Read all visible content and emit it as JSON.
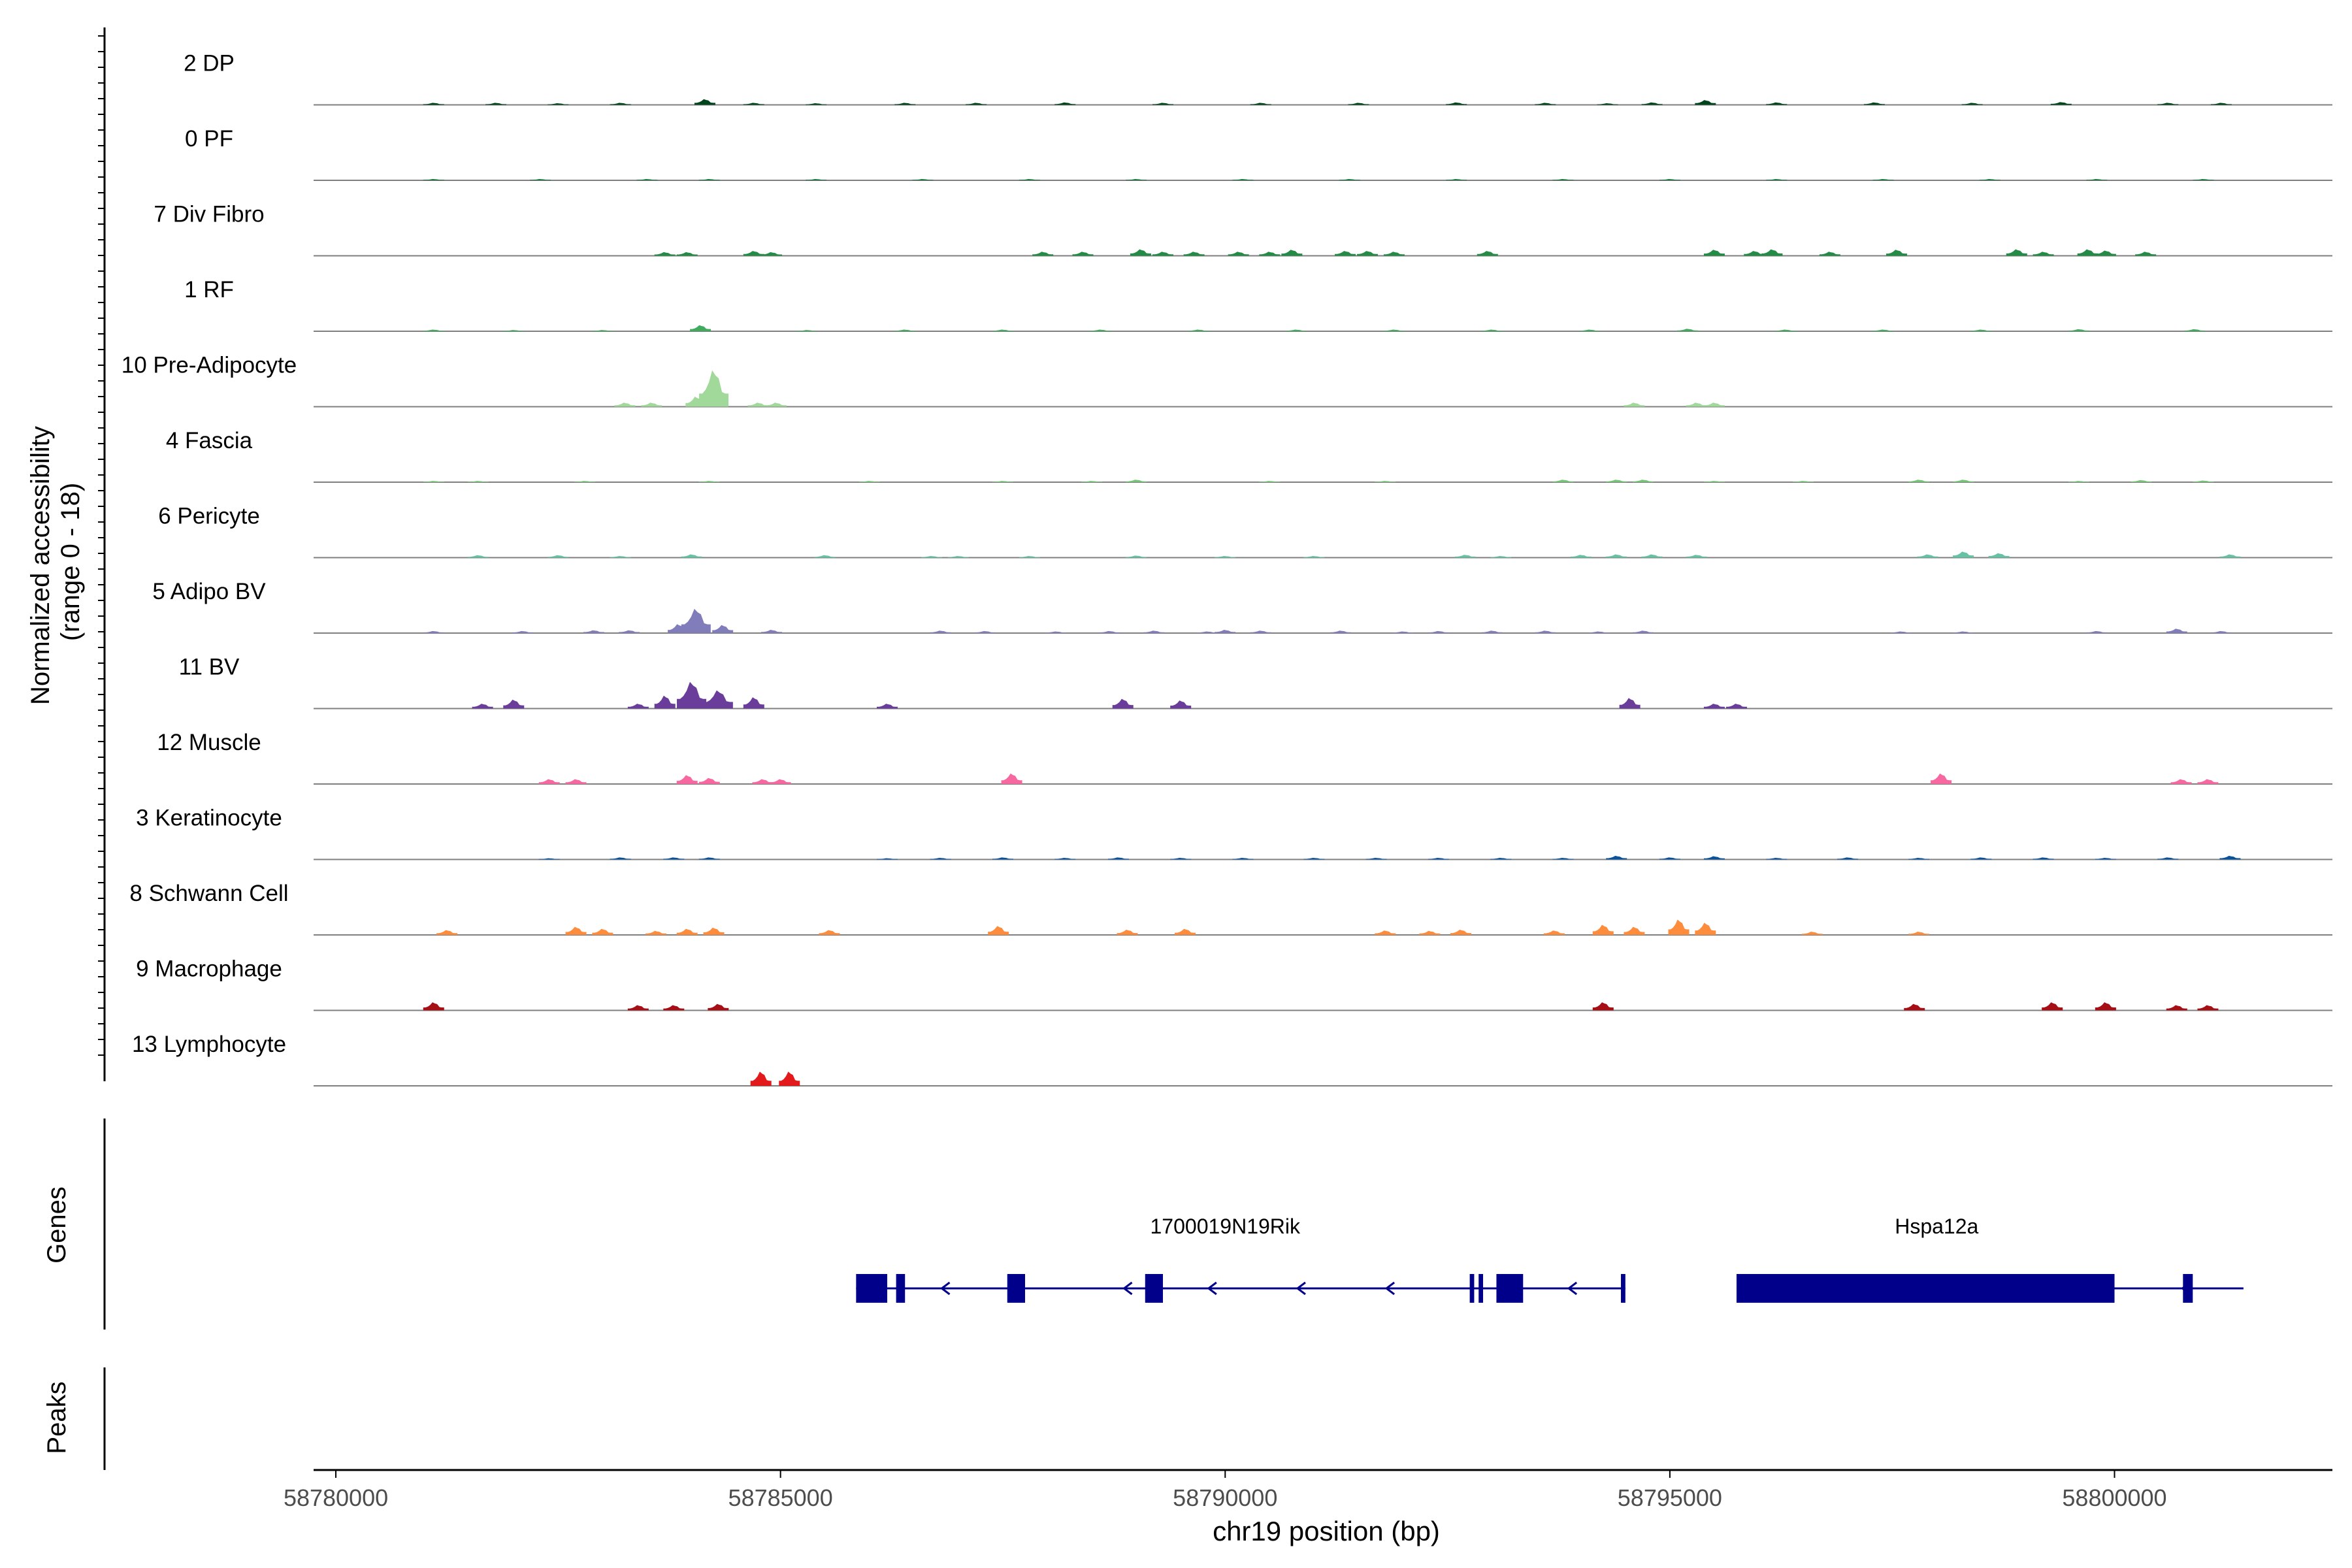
{
  "chart_data": {
    "type": "area",
    "title": "",
    "xlabel": "chr19 position (bp)",
    "ylabel_line1": "Normalized accessibility",
    "ylabel_line2": "(range 0 - 18)",
    "xlim": [
      58779750,
      58802450
    ],
    "ylim": [
      0,
      18
    ],
    "x_ticks": [
      58780000,
      58785000,
      58790000,
      58795000,
      58800000
    ],
    "x_tick_labels": [
      "58780000",
      "58785000",
      "58790000",
      "58795000",
      "58800000"
    ],
    "genes_label": "Genes",
    "peaks_label": "Peaks",
    "series": [
      {
        "name": "2 DP",
        "color": "#00441b",
        "peaks": [
          [
            58781100,
            0.5
          ],
          [
            58781800,
            0.5
          ],
          [
            58782500,
            0.4
          ],
          [
            58783200,
            0.5
          ],
          [
            58784150,
            1.4
          ],
          [
            58784700,
            0.5
          ],
          [
            58785400,
            0.4
          ],
          [
            58786400,
            0.5
          ],
          [
            58787200,
            0.5
          ],
          [
            58788200,
            0.6
          ],
          [
            58789300,
            0.5
          ],
          [
            58790400,
            0.5
          ],
          [
            58791500,
            0.5
          ],
          [
            58792600,
            0.6
          ],
          [
            58793600,
            0.5
          ],
          [
            58794300,
            0.4
          ],
          [
            58794800,
            0.6
          ],
          [
            58795400,
            1.2
          ],
          [
            58796200,
            0.6
          ],
          [
            58797300,
            0.6
          ],
          [
            58798400,
            0.5
          ],
          [
            58799400,
            0.7
          ],
          [
            58800600,
            0.5
          ],
          [
            58801200,
            0.5
          ]
        ]
      },
      {
        "name": "0 PF",
        "color": "#006d2c",
        "peaks": [
          [
            58781100,
            0.3
          ],
          [
            58782300,
            0.3
          ],
          [
            58783500,
            0.3
          ],
          [
            58784200,
            0.3
          ],
          [
            58785400,
            0.3
          ],
          [
            58786600,
            0.3
          ],
          [
            58787800,
            0.3
          ],
          [
            58789000,
            0.3
          ],
          [
            58790200,
            0.3
          ],
          [
            58791400,
            0.3
          ],
          [
            58792600,
            0.3
          ],
          [
            58793800,
            0.3
          ],
          [
            58795000,
            0.3
          ],
          [
            58796200,
            0.3
          ],
          [
            58797400,
            0.3
          ],
          [
            58798600,
            0.3
          ],
          [
            58799800,
            0.3
          ],
          [
            58801000,
            0.3
          ]
        ]
      },
      {
        "name": "7 Div Fibro",
        "color": "#238b45",
        "peaks": [
          [
            58783700,
            0.9
          ],
          [
            58783950,
            0.9
          ],
          [
            58784700,
            1.2
          ],
          [
            58784900,
            0.9
          ],
          [
            58787950,
            1.0
          ],
          [
            58788400,
            1.0
          ],
          [
            58789050,
            1.6
          ],
          [
            58789300,
            1.0
          ],
          [
            58789650,
            1.0
          ],
          [
            58790150,
            1.0
          ],
          [
            58790500,
            1.0
          ],
          [
            58790750,
            1.5
          ],
          [
            58791350,
            1.2
          ],
          [
            58791600,
            1.2
          ],
          [
            58791900,
            1.0
          ],
          [
            58792950,
            1.2
          ],
          [
            58795500,
            1.5
          ],
          [
            58795950,
            1.2
          ],
          [
            58796150,
            1.6
          ],
          [
            58796800,
            1.0
          ],
          [
            58797550,
            1.5
          ],
          [
            58798900,
            1.6
          ],
          [
            58799200,
            1.0
          ],
          [
            58799700,
            1.6
          ],
          [
            58799900,
            1.3
          ],
          [
            58800350,
            1.0
          ]
        ]
      },
      {
        "name": "1 RF",
        "color": "#41ab5d",
        "peaks": [
          [
            58781100,
            0.4
          ],
          [
            58782000,
            0.3
          ],
          [
            58783000,
            0.3
          ],
          [
            58784100,
            1.5
          ],
          [
            58785300,
            0.3
          ],
          [
            58786400,
            0.4
          ],
          [
            58787500,
            0.4
          ],
          [
            58788600,
            0.4
          ],
          [
            58789700,
            0.4
          ],
          [
            58790800,
            0.4
          ],
          [
            58791900,
            0.4
          ],
          [
            58793000,
            0.4
          ],
          [
            58794100,
            0.4
          ],
          [
            58795200,
            0.6
          ],
          [
            58796300,
            0.4
          ],
          [
            58797400,
            0.4
          ],
          [
            58798500,
            0.4
          ],
          [
            58799600,
            0.5
          ],
          [
            58800900,
            0.5
          ]
        ]
      },
      {
        "name": "10 Pre-Adipocyte",
        "color": "#a1d99b",
        "peaks": [
          [
            58783250,
            1.0
          ],
          [
            58783550,
            1.0
          ],
          [
            58784050,
            2.5
          ],
          [
            58784250,
            9.0
          ],
          [
            58784750,
            1.0
          ],
          [
            58784950,
            1.0
          ],
          [
            58794600,
            1.0
          ],
          [
            58795300,
            1.0
          ],
          [
            58795500,
            1.0
          ]
        ]
      },
      {
        "name": "4 Fascia",
        "color": "#74c476",
        "peaks": [
          [
            58781100,
            0.3
          ],
          [
            58781600,
            0.3
          ],
          [
            58782800,
            0.3
          ],
          [
            58784200,
            0.3
          ],
          [
            58786000,
            0.3
          ],
          [
            58787500,
            0.3
          ],
          [
            58788500,
            0.3
          ],
          [
            58789000,
            0.6
          ],
          [
            58790500,
            0.3
          ],
          [
            58791800,
            0.3
          ],
          [
            58793800,
            0.6
          ],
          [
            58794400,
            0.6
          ],
          [
            58794700,
            0.6
          ],
          [
            58795500,
            0.3
          ],
          [
            58796500,
            0.3
          ],
          [
            58797800,
            0.6
          ],
          [
            58798300,
            0.6
          ],
          [
            58799600,
            0.3
          ],
          [
            58800300,
            0.5
          ],
          [
            58801000,
            0.4
          ]
        ]
      },
      {
        "name": "6 Pericyte",
        "color": "#66c2a4",
        "peaks": [
          [
            58781600,
            0.6
          ],
          [
            58782500,
            0.6
          ],
          [
            58783200,
            0.4
          ],
          [
            58784000,
            0.8
          ],
          [
            58785500,
            0.6
          ],
          [
            58786700,
            0.4
          ],
          [
            58787000,
            0.4
          ],
          [
            58787800,
            0.4
          ],
          [
            58789000,
            0.5
          ],
          [
            58790000,
            0.4
          ],
          [
            58791000,
            0.4
          ],
          [
            58792700,
            0.7
          ],
          [
            58793100,
            0.4
          ],
          [
            58794000,
            0.7
          ],
          [
            58794400,
            0.8
          ],
          [
            58794800,
            0.8
          ],
          [
            58795300,
            0.7
          ],
          [
            58797900,
            0.8
          ],
          [
            58798300,
            1.5
          ],
          [
            58798700,
            1.1
          ],
          [
            58801300,
            0.8
          ]
        ]
      },
      {
        "name": "5 Adipo BV",
        "color": "#807dba",
        "peaks": [
          [
            58781100,
            0.5
          ],
          [
            58782100,
            0.5
          ],
          [
            58782900,
            0.7
          ],
          [
            58783300,
            0.7
          ],
          [
            58783850,
            2.2
          ],
          [
            58784050,
            6.0
          ],
          [
            58784350,
            2.0
          ],
          [
            58784900,
            0.8
          ],
          [
            58786800,
            0.6
          ],
          [
            58787300,
            0.5
          ],
          [
            58788100,
            0.4
          ],
          [
            58788700,
            0.5
          ],
          [
            58789200,
            0.6
          ],
          [
            58789800,
            0.4
          ],
          [
            58790000,
            0.8
          ],
          [
            58790400,
            0.6
          ],
          [
            58791300,
            0.6
          ],
          [
            58792000,
            0.4
          ],
          [
            58792400,
            0.5
          ],
          [
            58793000,
            0.6
          ],
          [
            58793600,
            0.6
          ],
          [
            58794200,
            0.4
          ],
          [
            58794700,
            0.6
          ],
          [
            58797600,
            0.4
          ],
          [
            58798300,
            0.4
          ],
          [
            58799800,
            0.5
          ],
          [
            58800700,
            1.1
          ],
          [
            58801200,
            0.5
          ]
        ]
      },
      {
        "name": "11 BV",
        "color": "#6a3d9a",
        "peaks": [
          [
            58781650,
            1.2
          ],
          [
            58782000,
            2.2
          ],
          [
            58783400,
            1.2
          ],
          [
            58783700,
            3.2
          ],
          [
            58784000,
            6.6
          ],
          [
            58784300,
            4.5
          ],
          [
            58784700,
            2.8
          ],
          [
            58786200,
            1.2
          ],
          [
            58788850,
            2.4
          ],
          [
            58789500,
            2.0
          ],
          [
            58794550,
            2.6
          ],
          [
            58795500,
            1.2
          ],
          [
            58795750,
            1.2
          ]
        ]
      },
      {
        "name": "12 Muscle",
        "color": "#f768a1",
        "peaks": [
          [
            58782400,
            1.2
          ],
          [
            58782700,
            1.2
          ],
          [
            58783950,
            2.2
          ],
          [
            58784200,
            1.5
          ],
          [
            58784800,
            1.2
          ],
          [
            58785000,
            1.2
          ],
          [
            58787600,
            2.6
          ],
          [
            58798050,
            2.6
          ],
          [
            58800750,
            1.2
          ],
          [
            58801050,
            1.2
          ]
        ]
      },
      {
        "name": "3 Keratinocyte",
        "color": "#08519c",
        "peaks": [
          [
            58782400,
            0.3
          ],
          [
            58783200,
            0.5
          ],
          [
            58783800,
            0.5
          ],
          [
            58784200,
            0.5
          ],
          [
            58786200,
            0.3
          ],
          [
            58786800,
            0.4
          ],
          [
            58787500,
            0.5
          ],
          [
            58788200,
            0.4
          ],
          [
            58788800,
            0.5
          ],
          [
            58789500,
            0.4
          ],
          [
            58790200,
            0.4
          ],
          [
            58791000,
            0.4
          ],
          [
            58791700,
            0.4
          ],
          [
            58792400,
            0.4
          ],
          [
            58793100,
            0.4
          ],
          [
            58793800,
            0.4
          ],
          [
            58794400,
            0.9
          ],
          [
            58795000,
            0.5
          ],
          [
            58795500,
            0.8
          ],
          [
            58796200,
            0.4
          ],
          [
            58797000,
            0.5
          ],
          [
            58797800,
            0.4
          ],
          [
            58798500,
            0.5
          ],
          [
            58799200,
            0.5
          ],
          [
            58799900,
            0.4
          ],
          [
            58800600,
            0.5
          ],
          [
            58801300,
            0.9
          ]
        ]
      },
      {
        "name": "8 Schwann Cell",
        "color": "#fd8d3c",
        "peaks": [
          [
            58781250,
            1.2
          ],
          [
            58782700,
            2.0
          ],
          [
            58783000,
            1.5
          ],
          [
            58783600,
            1.0
          ],
          [
            58783950,
            1.5
          ],
          [
            58784250,
            1.8
          ],
          [
            58785550,
            1.2
          ],
          [
            58787450,
            2.2
          ],
          [
            58788900,
            1.3
          ],
          [
            58789550,
            1.5
          ],
          [
            58791800,
            1.1
          ],
          [
            58792300,
            1.0
          ],
          [
            58792650,
            1.3
          ],
          [
            58793700,
            1.1
          ],
          [
            58794250,
            2.5
          ],
          [
            58794600,
            2.0
          ],
          [
            58795100,
            3.8
          ],
          [
            58795400,
            3.0
          ],
          [
            58796600,
            0.8
          ],
          [
            58797800,
            0.8
          ]
        ]
      },
      {
        "name": "9 Macrophage",
        "color": "#a50f15",
        "peaks": [
          [
            58781100,
            2.0
          ],
          [
            58783400,
            1.3
          ],
          [
            58783800,
            1.3
          ],
          [
            58784300,
            1.6
          ],
          [
            58794250,
            2.0
          ],
          [
            58797750,
            1.6
          ],
          [
            58799300,
            2.0
          ],
          [
            58799900,
            2.0
          ],
          [
            58800700,
            1.3
          ],
          [
            58801050,
            1.3
          ]
        ]
      },
      {
        "name": "13 Lymphocyte",
        "color": "#e31a1c",
        "peaks": [
          [
            58784780,
            3.5
          ],
          [
            58785100,
            3.5
          ]
        ]
      }
    ],
    "genes": [
      {
        "name": "1700019N19Rik",
        "strand": "-",
        "start": 58785850,
        "end": 58794500,
        "label_pos": 58790000,
        "exons": [
          [
            58785850,
            58786200
          ],
          [
            58786300,
            58786400
          ],
          [
            58787550,
            58787750
          ],
          [
            58789100,
            58789300
          ],
          [
            58792750,
            58792800
          ],
          [
            58792850,
            58792900
          ],
          [
            58793050,
            58793350
          ],
          [
            58794450,
            58794500
          ]
        ],
        "arrows": [
          58786850,
          58788900,
          58789850,
          58790850,
          58791850,
          58793900
        ]
      },
      {
        "name": "Hspa12a",
        "strand": "-",
        "start": 58795750,
        "end": 58801450,
        "label_pos": 58798000,
        "exons": [
          [
            58795750,
            58800000
          ],
          [
            58800770,
            58800880
          ]
        ],
        "arrows": [
          58800800
        ]
      }
    ]
  }
}
